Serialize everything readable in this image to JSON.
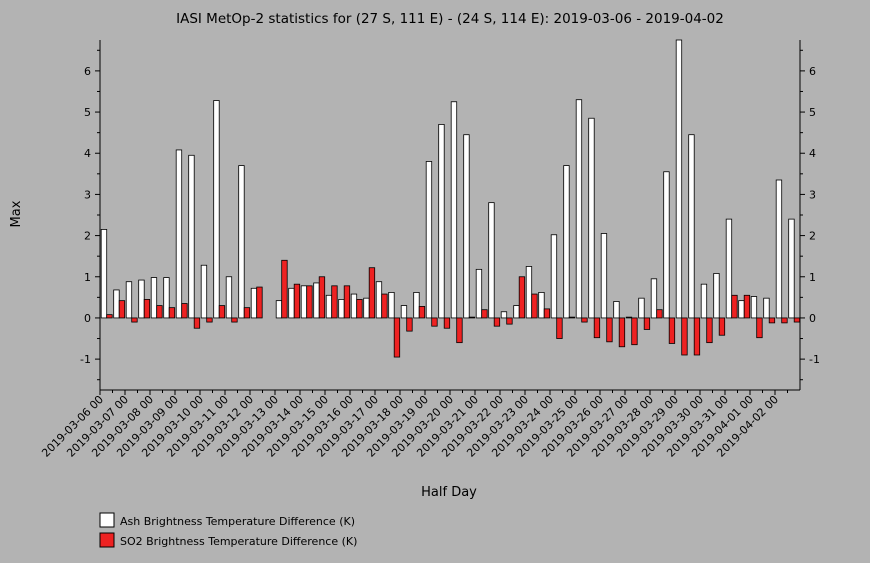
{
  "chart_data": {
    "type": "bar",
    "title": "IASI MetOp-2 statistics for (27 S, 111 E) - (24 S, 114 E): 2019-03-06 - 2019-04-02",
    "xlabel": "Half Day",
    "ylabel": "Max",
    "ylim": [
      -1.75,
      6.75
    ],
    "yticks": [
      -1,
      0,
      1,
      2,
      3,
      4,
      5,
      6
    ],
    "categories": [
      "2019-03-06 00",
      "2019-03-06 12",
      "2019-03-07 00",
      "2019-03-07 12",
      "2019-03-08 00",
      "2019-03-08 12",
      "2019-03-09 00",
      "2019-03-09 12",
      "2019-03-10 00",
      "2019-03-10 12",
      "2019-03-11 00",
      "2019-03-11 12",
      "2019-03-12 00",
      "2019-03-12 12",
      "2019-03-13 00",
      "2019-03-13 12",
      "2019-03-14 00",
      "2019-03-14 12",
      "2019-03-15 00",
      "2019-03-15 12",
      "2019-03-16 00",
      "2019-03-16 12",
      "2019-03-17 00",
      "2019-03-17 12",
      "2019-03-18 00",
      "2019-03-18 12",
      "2019-03-19 00",
      "2019-03-19 12",
      "2019-03-20 00",
      "2019-03-20 12",
      "2019-03-21 00",
      "2019-03-21 12",
      "2019-03-22 00",
      "2019-03-22 12",
      "2019-03-23 00",
      "2019-03-23 12",
      "2019-03-24 00",
      "2019-03-24 12",
      "2019-03-25 00",
      "2019-03-25 12",
      "2019-03-26 00",
      "2019-03-26 12",
      "2019-03-27 00",
      "2019-03-27 12",
      "2019-03-28 00",
      "2019-03-28 12",
      "2019-03-29 00",
      "2019-03-29 12",
      "2019-03-30 00",
      "2019-03-30 12",
      "2019-03-31 00",
      "2019-03-31 12",
      "2019-04-01 00",
      "2019-04-01 12",
      "2019-04-02 00",
      "2019-04-02 12"
    ],
    "tick_labels": [
      "2019-03-06 00",
      "2019-03-07 00",
      "2019-03-08 00",
      "2019-03-09 00",
      "2019-03-10 00",
      "2019-03-11 00",
      "2019-03-12 00",
      "2019-03-13 00",
      "2019-03-14 00",
      "2019-03-15 00",
      "2019-03-16 00",
      "2019-03-17 00",
      "2019-03-18 00",
      "2019-03-19 00",
      "2019-03-20 00",
      "2019-03-21 00",
      "2019-03-22 00",
      "2019-03-23 00",
      "2019-03-24 00",
      "2019-03-25 00",
      "2019-03-26 00",
      "2019-03-27 00",
      "2019-03-28 00",
      "2019-03-29 00",
      "2019-03-30 00",
      "2019-03-31 00",
      "2019-04-01 00",
      "2019-04-02 00"
    ],
    "series": [
      {
        "name": "Ash Brightness Temperature Difference (K)",
        "color": "#ffffff",
        "values": [
          2.15,
          0.68,
          0.88,
          0.92,
          0.98,
          0.98,
          4.08,
          3.95,
          1.28,
          5.28,
          1.0,
          3.7,
          0.72,
          null,
          0.42,
          0.72,
          0.78,
          0.85,
          0.55,
          0.45,
          0.58,
          0.48,
          0.88,
          0.62,
          0.3,
          0.62,
          3.8,
          4.7,
          5.25,
          4.45,
          1.18,
          2.8,
          0.15,
          0.3,
          1.25,
          0.62,
          2.02,
          3.7,
          5.3,
          4.85,
          2.05,
          0.4,
          0.02,
          0.48,
          0.95,
          3.55,
          6.75,
          4.45,
          0.82,
          1.08,
          2.4,
          0.42,
          0.52,
          0.48,
          3.35,
          2.4
        ]
      },
      {
        "name": "SO2 Brightness Temperature Difference (K)",
        "color": "#ee2222",
        "values": [
          0.08,
          0.42,
          -0.1,
          0.45,
          0.3,
          0.25,
          0.35,
          -0.25,
          -0.1,
          0.3,
          -0.1,
          0.25,
          0.75,
          null,
          1.4,
          0.82,
          0.78,
          1.0,
          0.78,
          0.78,
          0.45,
          1.22,
          0.58,
          -0.95,
          -0.32,
          0.28,
          -0.2,
          -0.25,
          -0.6,
          0.02,
          0.2,
          -0.2,
          -0.15,
          1.0,
          0.58,
          0.22,
          -0.5,
          0.02,
          -0.1,
          -0.48,
          -0.58,
          -0.7,
          -0.65,
          -0.28,
          0.2,
          -0.62,
          -0.9,
          -0.9,
          -0.6,
          -0.42,
          0.55,
          0.55,
          -0.48,
          -0.12,
          -0.12,
          -0.1
        ]
      }
    ],
    "legend_placement": "bottom-left",
    "grid": false
  }
}
